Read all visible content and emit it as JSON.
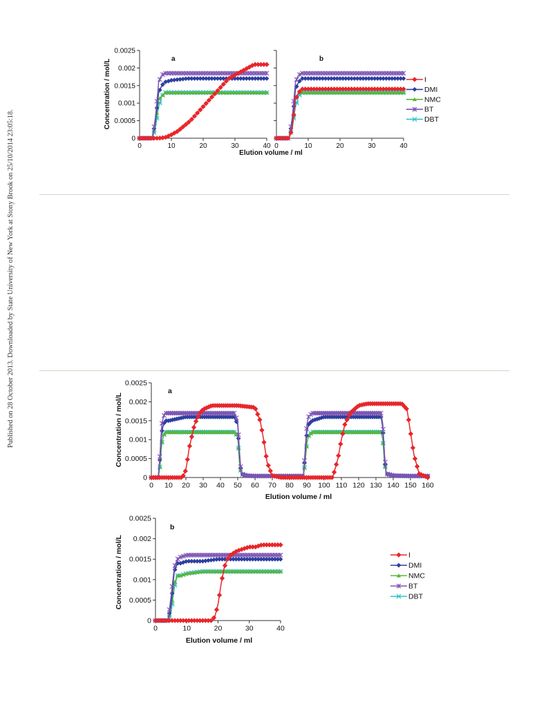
{
  "watermark": "Published on 28 October 2013. Downloaded by State University of New York at Stony Brook on 25/10/2014 23:05:18.",
  "colors": {
    "I": "#e8262a",
    "DMI": "#2e3f9e",
    "NMC": "#5cb53c",
    "BT": "#7d55b3",
    "DBT": "#2fc0cf"
  },
  "legend_labels": [
    "I",
    "DMI",
    "NMC",
    "BT",
    "DBT"
  ],
  "chart_data": [
    {
      "type": "line",
      "panel_label": "a",
      "xlabel": "",
      "ylabel": "Concentration / mol/L",
      "xlim": [
        0,
        40
      ],
      "ylim": [
        0,
        0.0025
      ],
      "xticks": [
        "0",
        "10",
        "20",
        "30",
        "40"
      ],
      "yticks": [
        "0",
        "0.0005",
        "0.001",
        "0.0015",
        "0.002",
        "0.0025"
      ],
      "series": [
        {
          "name": "I",
          "x": [
            0,
            2,
            4,
            6,
            8,
            10,
            12,
            14,
            16,
            18,
            20,
            22,
            24,
            26,
            28,
            30,
            32,
            34,
            36,
            38,
            40
          ],
          "y": [
            0,
            0,
            0,
            0,
            2e-05,
            0.0001,
            0.0002,
            0.00035,
            0.0005,
            0.0007,
            0.0009,
            0.0011,
            0.0013,
            0.0015,
            0.0017,
            0.0018,
            0.0019,
            0.002,
            0.0021,
            0.0021,
            0.0021
          ]
        },
        {
          "name": "DMI",
          "x": [
            0,
            2,
            4,
            5,
            6,
            7,
            8,
            10,
            15,
            20,
            25,
            30,
            35,
            40
          ],
          "y": [
            0,
            0,
            0,
            0.0005,
            0.0013,
            0.0015,
            0.0016,
            0.00165,
            0.0017,
            0.0017,
            0.0017,
            0.0017,
            0.0017,
            0.0017
          ]
        },
        {
          "name": "NMC",
          "x": [
            0,
            2,
            4,
            5,
            6,
            7,
            8,
            10,
            15,
            20,
            25,
            30,
            35,
            40
          ],
          "y": [
            0,
            0,
            0,
            0.0004,
            0.0011,
            0.0012,
            0.0013,
            0.0013,
            0.0013,
            0.0013,
            0.0013,
            0.0013,
            0.0013,
            0.0013
          ]
        },
        {
          "name": "BT",
          "x": [
            0,
            2,
            4,
            5,
            6,
            7,
            8,
            10,
            15,
            20,
            25,
            30,
            35,
            40
          ],
          "y": [
            0,
            0,
            0,
            0.0006,
            0.0016,
            0.0018,
            0.00185,
            0.00185,
            0.00185,
            0.00185,
            0.00185,
            0.00185,
            0.00185,
            0.00185
          ]
        },
        {
          "name": "DBT",
          "x": [
            0,
            2,
            4,
            5,
            6,
            7,
            8,
            10,
            15,
            20,
            25,
            30,
            35,
            40
          ],
          "y": [
            0,
            0,
            0,
            0.0003,
            0.0009,
            0.0012,
            0.0013,
            0.0013,
            0.0013,
            0.0013,
            0.0013,
            0.0013,
            0.0013,
            0.0013
          ]
        }
      ]
    },
    {
      "type": "line",
      "panel_label": "b",
      "xlabel": "Elution volume  / ml",
      "ylabel": "",
      "xlim": [
        0,
        40
      ],
      "ylim": [
        0,
        0.0025
      ],
      "xticks": [
        "0",
        "10",
        "20",
        "30",
        "40"
      ],
      "yticks": [],
      "series": [
        {
          "name": "I",
          "x": [
            0,
            2,
            4,
            5,
            6,
            7,
            8,
            10,
            15,
            20,
            25,
            30,
            35,
            40
          ],
          "y": [
            0,
            0,
            0,
            0.0003,
            0.0011,
            0.0013,
            0.0014,
            0.0014,
            0.0014,
            0.0014,
            0.0014,
            0.0014,
            0.0014,
            0.0014
          ]
        },
        {
          "name": "DMI",
          "x": [
            0,
            2,
            4,
            5,
            6,
            7,
            8,
            10,
            15,
            20,
            25,
            30,
            35,
            40
          ],
          "y": [
            0,
            0,
            0,
            0.0005,
            0.0014,
            0.0016,
            0.0017,
            0.0017,
            0.0017,
            0.0017,
            0.0017,
            0.0017,
            0.0017,
            0.0017
          ]
        },
        {
          "name": "NMC",
          "x": [
            0,
            2,
            4,
            5,
            6,
            7,
            8,
            10,
            15,
            20,
            25,
            30,
            35,
            40
          ],
          "y": [
            0,
            0,
            0,
            0.0004,
            0.0011,
            0.0013,
            0.0013,
            0.0013,
            0.0013,
            0.0013,
            0.0013,
            0.0013,
            0.0013,
            0.0013
          ]
        },
        {
          "name": "BT",
          "x": [
            0,
            2,
            4,
            5,
            6,
            7,
            8,
            10,
            15,
            20,
            25,
            30,
            35,
            40
          ],
          "y": [
            0,
            0,
            0,
            0.0006,
            0.0016,
            0.0018,
            0.00185,
            0.00185,
            0.00185,
            0.00185,
            0.00185,
            0.00185,
            0.00185,
            0.00185
          ]
        },
        {
          "name": "DBT",
          "x": [
            0,
            2,
            4,
            5,
            6,
            7,
            8,
            10,
            15,
            20,
            25,
            30,
            35,
            40
          ],
          "y": [
            0,
            0,
            0,
            0.0003,
            0.0009,
            0.0012,
            0.0013,
            0.0013,
            0.0013,
            0.0013,
            0.0013,
            0.0013,
            0.0013,
            0.0013
          ]
        }
      ]
    },
    {
      "type": "line",
      "panel_label": "a",
      "xlabel": "Elution volume  / ml",
      "ylabel": "Concentration / mol/L",
      "xlim": [
        0,
        160
      ],
      "ylim": [
        0,
        0.0025
      ],
      "xticks": [
        "0",
        "10",
        "20",
        "30",
        "40",
        "50",
        "60",
        "70",
        "80",
        "90",
        "100",
        "110",
        "120",
        "130",
        "140",
        "150",
        "160"
      ],
      "yticks": [
        "0",
        "0.0005",
        "0.001",
        "0.0015",
        "0.002",
        "0.0025"
      ],
      "series": [
        {
          "name": "I",
          "x": [
            0,
            10,
            18,
            20,
            22,
            25,
            28,
            30,
            35,
            40,
            50,
            60,
            63,
            65,
            67,
            70,
            75,
            80,
            88,
            100,
            105,
            108,
            110,
            112,
            115,
            120,
            125,
            130,
            140,
            145,
            148,
            150,
            152,
            155,
            160
          ],
          "y": [
            0,
            0,
            0,
            0.0002,
            0.0008,
            0.0014,
            0.0017,
            0.0018,
            0.0019,
            0.0019,
            0.0019,
            0.00185,
            0.0015,
            0.001,
            0.0004,
            5e-05,
            0,
            0,
            0,
            0,
            0,
            0.0005,
            0.001,
            0.0014,
            0.0017,
            0.0019,
            0.00195,
            0.00195,
            0.00195,
            0.00195,
            0.0018,
            0.0012,
            0.0006,
            0.0001,
            0
          ]
        },
        {
          "name": "DMI",
          "x": [
            0,
            4,
            5,
            6,
            7,
            8,
            10,
            20,
            30,
            40,
            48,
            50,
            51,
            52,
            55,
            60,
            70,
            80,
            88,
            89,
            90,
            91,
            93,
            100,
            110,
            120,
            130,
            133,
            134,
            135,
            136,
            140,
            150,
            160
          ],
          "y": [
            0,
            0,
            0.0005,
            0.0012,
            0.0014,
            0.0015,
            0.0015,
            0.0016,
            0.0016,
            0.0016,
            0.0016,
            0.0014,
            0.0006,
            0.0001,
            5e-05,
            4e-05,
            4e-05,
            4e-05,
            4e-05,
            0.0006,
            0.0012,
            0.0014,
            0.0015,
            0.0016,
            0.0016,
            0.0016,
            0.0016,
            0.0016,
            0.0013,
            0.0005,
            0.0001,
            5e-05,
            4e-05,
            4e-05
          ]
        },
        {
          "name": "NMC",
          "x": [
            0,
            4,
            5,
            6,
            7,
            8,
            10,
            20,
            30,
            40,
            48,
            50,
            51,
            52,
            55,
            60,
            70,
            80,
            88,
            89,
            90,
            91,
            93,
            100,
            110,
            120,
            130,
            133,
            134,
            135,
            136,
            140,
            150,
            160
          ],
          "y": [
            0,
            0,
            0.0003,
            0.0009,
            0.0011,
            0.0012,
            0.0012,
            0.0012,
            0.0012,
            0.0012,
            0.0012,
            0.0011,
            0.0004,
            0.0001,
            5e-05,
            4e-05,
            4e-05,
            4e-05,
            4e-05,
            0.0004,
            0.0009,
            0.0011,
            0.0012,
            0.0012,
            0.0012,
            0.0012,
            0.0012,
            0.0012,
            0.001,
            0.0004,
            0.0001,
            5e-05,
            4e-05,
            4e-05
          ]
        },
        {
          "name": "BT",
          "x": [
            0,
            4,
            5,
            6,
            7,
            8,
            10,
            20,
            30,
            40,
            48,
            50,
            51,
            52,
            55,
            60,
            70,
            80,
            88,
            89,
            90,
            91,
            93,
            100,
            110,
            120,
            130,
            133,
            134,
            135,
            136,
            140,
            150,
            160
          ],
          "y": [
            0,
            0,
            0.0006,
            0.0014,
            0.0016,
            0.0017,
            0.0017,
            0.0017,
            0.0017,
            0.0017,
            0.0017,
            0.0015,
            0.0007,
            0.0001,
            5e-05,
            4e-05,
            4e-05,
            4e-05,
            4e-05,
            0.0007,
            0.0014,
            0.0016,
            0.0017,
            0.0017,
            0.0017,
            0.0017,
            0.0017,
            0.0017,
            0.0014,
            0.0006,
            0.0001,
            5e-05,
            4e-05,
            4e-05
          ]
        },
        {
          "name": "DBT",
          "x": [
            0,
            4,
            5,
            6,
            7,
            8,
            10,
            20,
            30,
            40,
            48,
            50,
            51,
            52,
            55,
            60,
            70,
            80,
            88,
            89,
            90,
            91,
            93,
            100,
            110,
            120,
            130,
            133,
            134,
            135,
            136,
            140,
            150,
            160
          ],
          "y": [
            0,
            0,
            0.0003,
            0.0009,
            0.0011,
            0.0012,
            0.0012,
            0.0012,
            0.0012,
            0.0012,
            0.0012,
            0.0011,
            0.0004,
            0.0001,
            5e-05,
            4e-05,
            4e-05,
            4e-05,
            4e-05,
            0.0004,
            0.0009,
            0.0011,
            0.0012,
            0.0012,
            0.0012,
            0.0012,
            0.0012,
            0.0012,
            0.001,
            0.0004,
            0.0001,
            5e-05,
            4e-05,
            4e-05
          ]
        }
      ]
    },
    {
      "type": "line",
      "panel_label": "b",
      "xlabel": "Elution volume  / ml",
      "ylabel": "Concentration / mol/L",
      "xlim": [
        0,
        40
      ],
      "ylim": [
        0,
        0.0025
      ],
      "xticks": [
        "0",
        "10",
        "20",
        "30",
        "40"
      ],
      "yticks": [
        "0",
        "0.0005",
        "0.001",
        "0.0015",
        "0.002",
        "0.0025"
      ],
      "series": [
        {
          "name": "I",
          "x": [
            0,
            2,
            4,
            6,
            8,
            10,
            12,
            14,
            16,
            18,
            19,
            20,
            21,
            22,
            23,
            24,
            26,
            28,
            30,
            32,
            34,
            36,
            38,
            40
          ],
          "y": [
            0,
            0,
            0,
            0,
            0,
            0,
            0,
            0,
            0,
            0,
            0.0001,
            0.0004,
            0.0009,
            0.0013,
            0.0015,
            0.0016,
            0.0017,
            0.00175,
            0.0018,
            0.0018,
            0.00185,
            0.00185,
            0.00185,
            0.00185
          ]
        },
        {
          "name": "DMI",
          "x": [
            0,
            2,
            4,
            5,
            6,
            7,
            8,
            10,
            15,
            20,
            25,
            30,
            35,
            40
          ],
          "y": [
            0,
            0,
            0,
            0.0004,
            0.0012,
            0.0014,
            0.0014,
            0.00145,
            0.00145,
            0.0015,
            0.0015,
            0.0015,
            0.0015,
            0.0015
          ]
        },
        {
          "name": "NMC",
          "x": [
            0,
            2,
            4,
            5,
            6,
            7,
            8,
            10,
            15,
            20,
            25,
            30,
            35,
            40
          ],
          "y": [
            0,
            0,
            0,
            0.0003,
            0.0009,
            0.0011,
            0.0011,
            0.00115,
            0.0012,
            0.0012,
            0.0012,
            0.0012,
            0.0012,
            0.0012
          ]
        },
        {
          "name": "BT",
          "x": [
            0,
            2,
            4,
            5,
            6,
            7,
            8,
            10,
            15,
            20,
            25,
            30,
            35,
            40
          ],
          "y": [
            0,
            0,
            0,
            0.0006,
            0.0013,
            0.0015,
            0.00155,
            0.0016,
            0.0016,
            0.0016,
            0.0016,
            0.0016,
            0.0016,
            0.0016
          ]
        },
        {
          "name": "DBT",
          "x": [
            0,
            2,
            4,
            5,
            6,
            7,
            8,
            10,
            15,
            20,
            25,
            30,
            35,
            40
          ],
          "y": [
            0,
            0,
            0,
            0.0002,
            0.0008,
            0.0011,
            0.0011,
            0.00115,
            0.0012,
            0.0012,
            0.0012,
            0.0012,
            0.0012,
            0.0012
          ]
        }
      ]
    }
  ]
}
